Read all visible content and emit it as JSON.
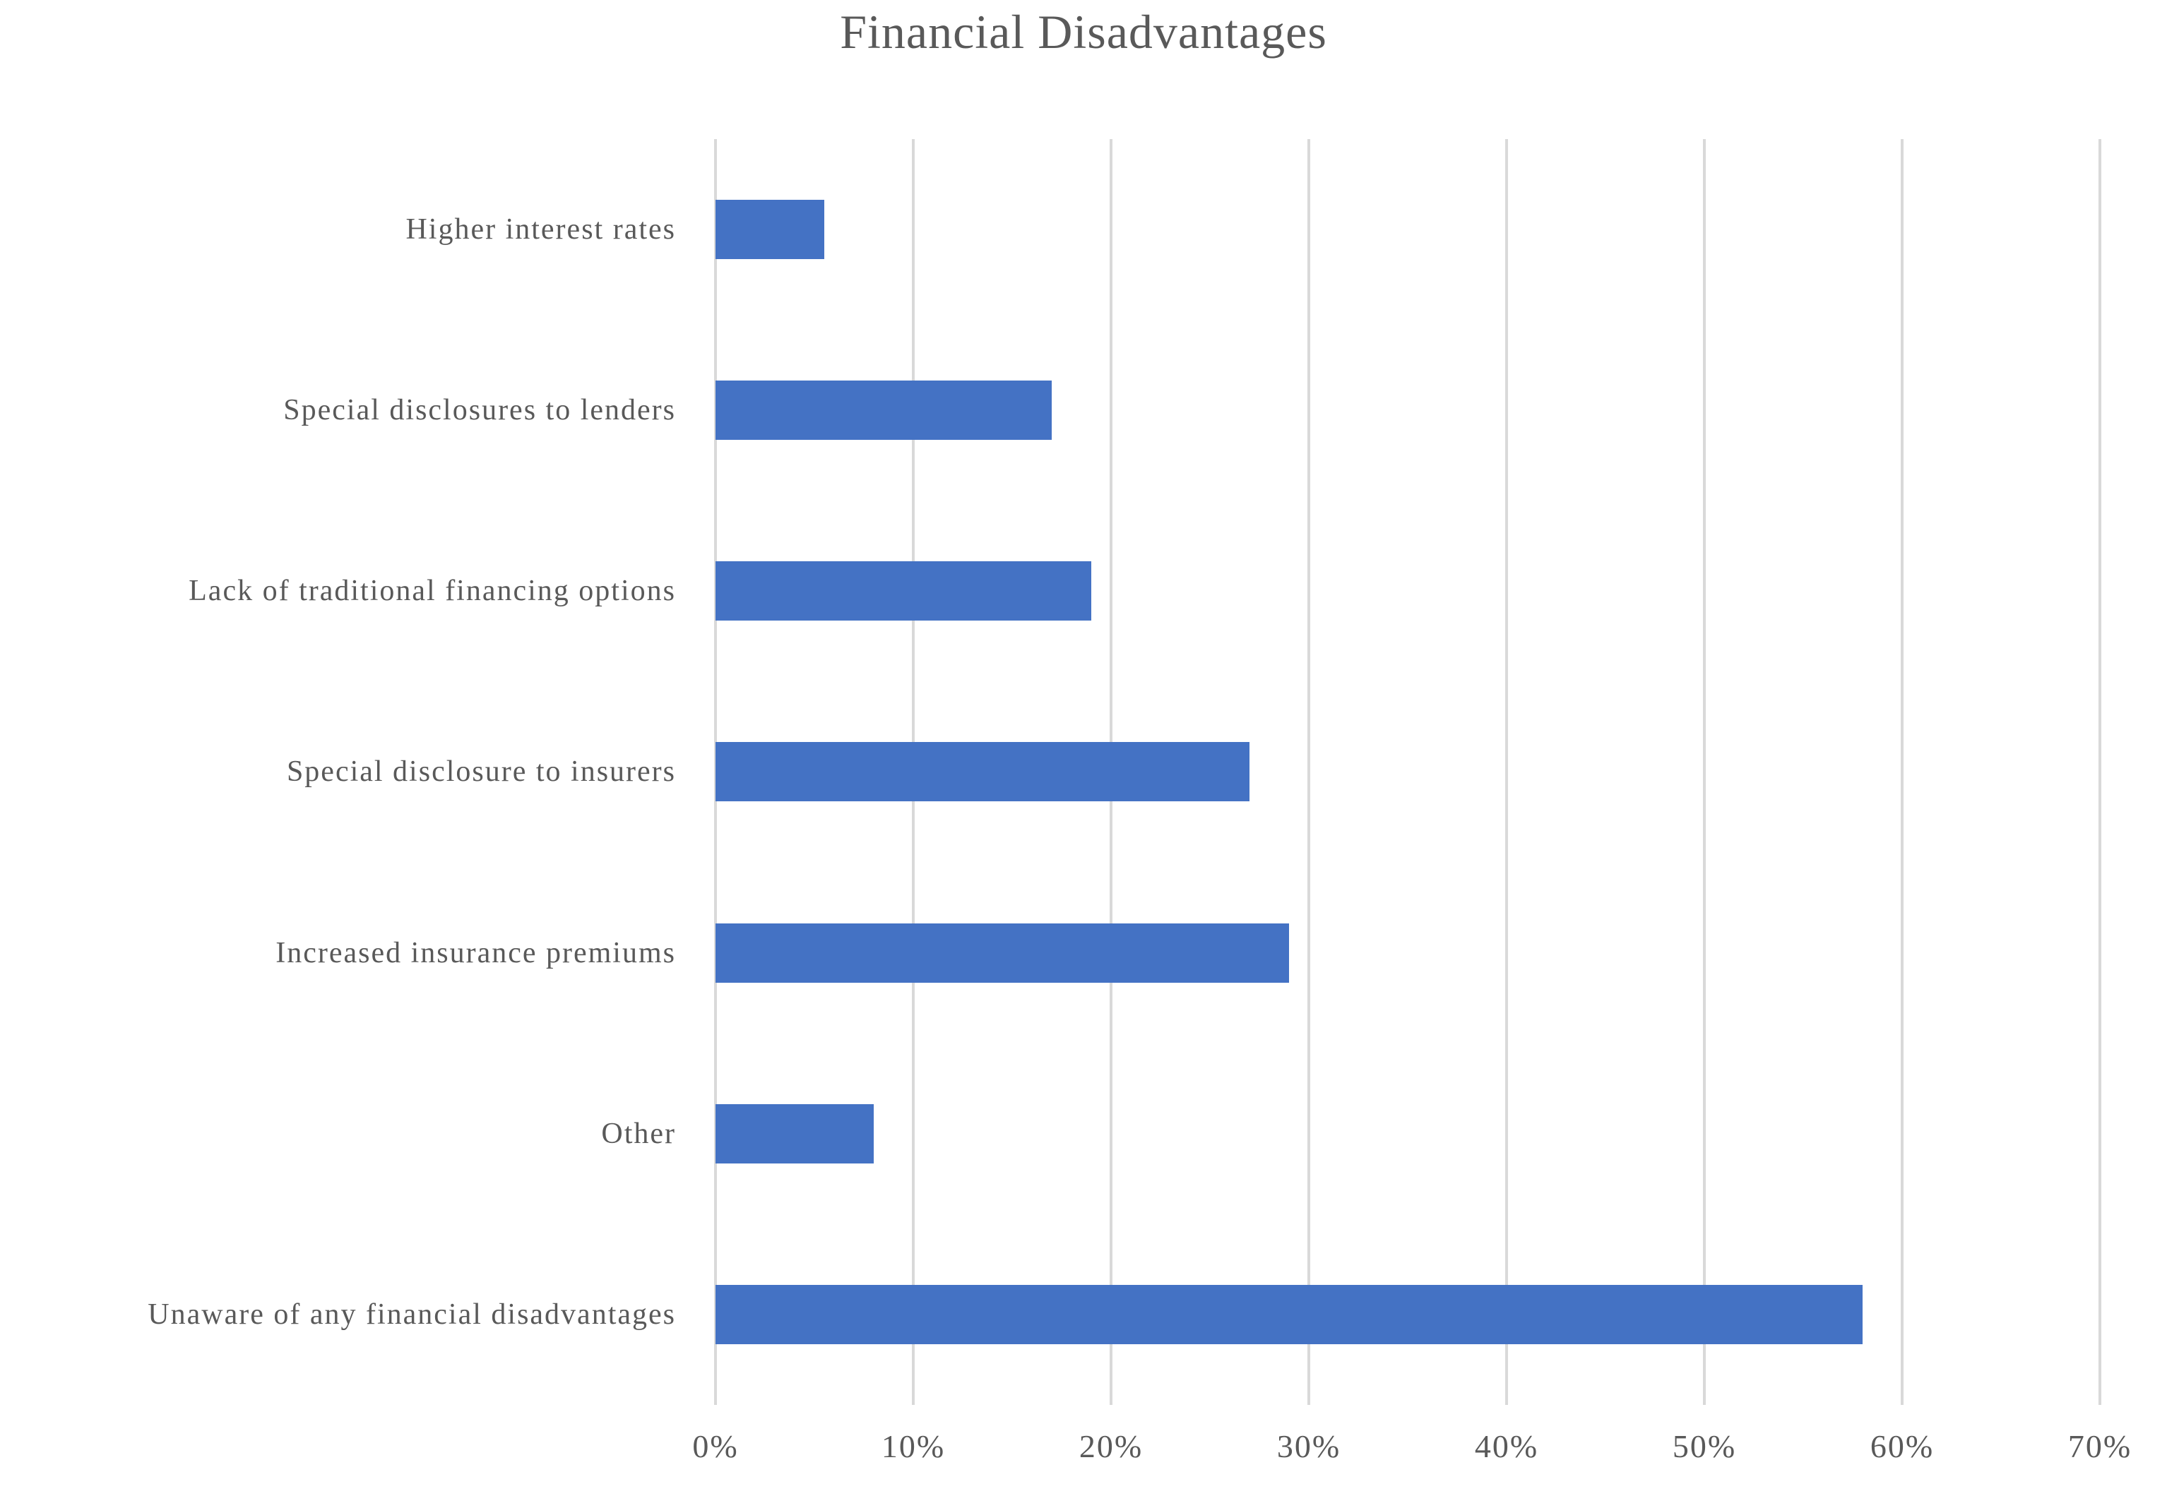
{
  "chart_data": {
    "type": "bar",
    "orientation": "horizontal",
    "title": "Financial Disadvantages",
    "categories": [
      "Higher interest rates",
      "Special disclosures to lenders",
      "Lack of traditional financing options",
      "Special disclosure to insurers",
      "Increased insurance premiums",
      "Other",
      "Unaware of any financial disadvantages"
    ],
    "values": [
      5.5,
      17,
      19,
      27,
      29,
      8,
      58
    ],
    "unit": "%",
    "xlabel": "",
    "ylabel": "",
    "xlim": [
      0,
      70
    ],
    "xticks": [
      0,
      10,
      20,
      30,
      40,
      50,
      60,
      70
    ],
    "tick_labels": [
      "0%",
      "10%",
      "20%",
      "30%",
      "40%",
      "50%",
      "60%",
      "70%"
    ],
    "grid": "vertical-only",
    "legend": "none",
    "bar_color": "#4472C4",
    "gridline_color": "#D9D9D9",
    "text_color": "#595959"
  }
}
